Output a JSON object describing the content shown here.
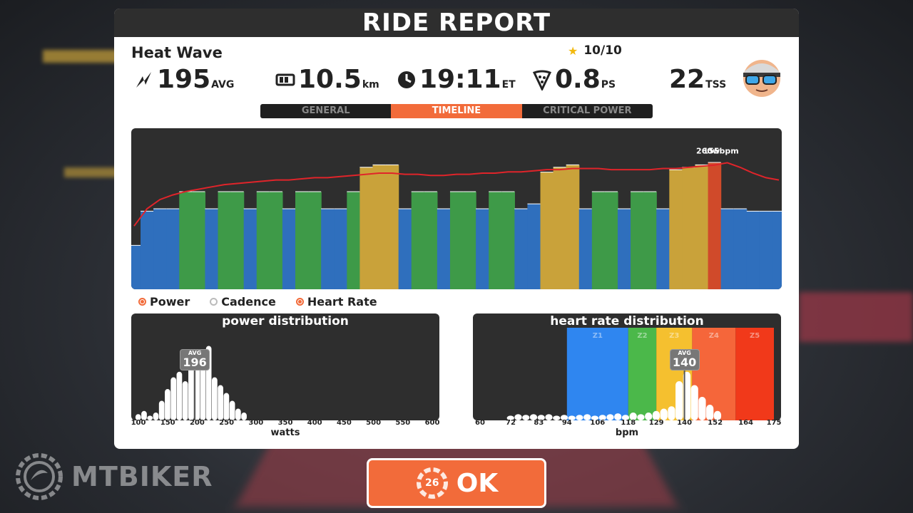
{
  "watermark": {
    "text": "MTBIKER"
  },
  "report": {
    "title": "RIDE REPORT",
    "ride_name": "Heat Wave",
    "rating": "10/10",
    "stats": {
      "power": {
        "value": "195",
        "unit": "AVG",
        "icon": "power-bolt-icon"
      },
      "distance": {
        "value": "10.5",
        "unit": "km",
        "icon": "odometer-icon"
      },
      "time": {
        "value": "19:11",
        "unit": "ET",
        "icon": "clock-icon"
      },
      "pizza": {
        "value": "0.8",
        "unit": "PS",
        "icon": "pizza-icon"
      },
      "tss": {
        "value": "22",
        "unit": "TSS"
      }
    },
    "tabs": [
      {
        "label": "GENERAL",
        "active": false
      },
      {
        "label": "TIMELINE",
        "active": true
      },
      {
        "label": "CRITICAL POWER",
        "active": false
      }
    ],
    "legend": [
      {
        "label": "Power",
        "checked": true
      },
      {
        "label": "Cadence",
        "checked": false
      },
      {
        "label": "Heart Rate",
        "checked": true
      }
    ]
  },
  "chart_data": [
    {
      "type": "area",
      "title": "",
      "annotations": [
        {
          "text": "155bpm",
          "series": "Heart Rate",
          "x": 0.91
        },
        {
          "text": "260w",
          "series": "Power",
          "x": 0.89
        }
      ],
      "x": [
        0.0,
        0.02,
        0.04,
        0.06,
        0.08,
        0.1,
        0.12,
        0.14,
        0.16,
        0.18,
        0.2,
        0.22,
        0.24,
        0.26,
        0.28,
        0.3,
        0.32,
        0.34,
        0.36,
        0.38,
        0.4,
        0.42,
        0.44,
        0.46,
        0.48,
        0.5,
        0.52,
        0.54,
        0.56,
        0.58,
        0.6,
        0.62,
        0.64,
        0.66,
        0.68,
        0.7,
        0.72,
        0.74,
        0.76,
        0.78,
        0.8,
        0.82,
        0.84,
        0.86,
        0.88,
        0.9,
        0.92,
        0.94,
        0.96,
        0.98,
        1.0
      ],
      "series": [
        {
          "name": "Heart Rate",
          "color": "#e0242a",
          "values": [
            95,
            110,
            118,
            122,
            125,
            127,
            129,
            131,
            132,
            133,
            134,
            135,
            135,
            136,
            137,
            137,
            138,
            139,
            140,
            141,
            141,
            140,
            140,
            139,
            139,
            140,
            140,
            141,
            141,
            142,
            142,
            143,
            144,
            144,
            145,
            145,
            145,
            144,
            144,
            144,
            144,
            145,
            145,
            146,
            147,
            148,
            150,
            146,
            141,
            137,
            135
          ]
        },
        {
          "name": "Power",
          "color": "#2f6fbd",
          "values": [
            90,
            160,
            165,
            165,
            200,
            200,
            165,
            200,
            200,
            165,
            200,
            200,
            165,
            200,
            200,
            165,
            165,
            200,
            250,
            255,
            255,
            165,
            200,
            200,
            165,
            200,
            200,
            165,
            200,
            200,
            165,
            175,
            240,
            250,
            255,
            165,
            200,
            200,
            165,
            200,
            200,
            165,
            245,
            250,
            255,
            260,
            165,
            165,
            160,
            160,
            160
          ],
          "zone_colors": [
            "#2f6fbd",
            "#2f6fbd",
            "#2f6fbd",
            "#2f6fbd",
            "#3e9a48",
            "#3e9a48",
            "#2f6fbd",
            "#3e9a48",
            "#3e9a48",
            "#2f6fbd",
            "#3e9a48",
            "#3e9a48",
            "#2f6fbd",
            "#3e9a48",
            "#3e9a48",
            "#2f6fbd",
            "#2f6fbd",
            "#3e9a48",
            "#c9a23a",
            "#c9a23a",
            "#c9a23a",
            "#2f6fbd",
            "#3e9a48",
            "#3e9a48",
            "#2f6fbd",
            "#3e9a48",
            "#3e9a48",
            "#2f6fbd",
            "#3e9a48",
            "#3e9a48",
            "#2f6fbd",
            "#2f6fbd",
            "#c9a23a",
            "#c9a23a",
            "#c9a23a",
            "#2f6fbd",
            "#3e9a48",
            "#3e9a48",
            "#2f6fbd",
            "#3e9a48",
            "#3e9a48",
            "#2f6fbd",
            "#c9a23a",
            "#c9a23a",
            "#c9a23a",
            "#d04a2a",
            "#2f6fbd",
            "#2f6fbd",
            "#2f6fbd",
            "#2f6fbd",
            "#2f6fbd"
          ]
        }
      ]
    },
    {
      "type": "bar",
      "title": "power distribution",
      "xlabel": "watts",
      "ticks": [
        "100",
        "150",
        "200",
        "250",
        "300",
        "350",
        "400",
        "450",
        "500",
        "550",
        "600"
      ],
      "xlim": [
        100,
        600
      ],
      "avg": {
        "label": "AVG",
        "value": 196
      },
      "bins_x": [
        100,
        110,
        120,
        130,
        140,
        150,
        160,
        170,
        180,
        190,
        200,
        210,
        220,
        230,
        240,
        250,
        260,
        270,
        280
      ],
      "values": [
        0.08,
        0.12,
        0.06,
        0.1,
        0.25,
        0.4,
        0.55,
        0.62,
        0.5,
        0.8,
        0.72,
        0.9,
        0.95,
        0.55,
        0.45,
        0.35,
        0.25,
        0.15,
        0.1
      ]
    },
    {
      "type": "bar",
      "title": "heart rate distribution",
      "xlabel": "bpm",
      "ticks": [
        "60",
        "72",
        "83",
        "94",
        "106",
        "118",
        "129",
        "140",
        "152",
        "164",
        "175"
      ],
      "xlim": [
        60,
        175
      ],
      "zones": [
        {
          "label": "Z1",
          "from": 94,
          "to": 118,
          "color": "#2f86f0"
        },
        {
          "label": "Z2",
          "from": 118,
          "to": 129,
          "color": "#4bb84a"
        },
        {
          "label": "Z3",
          "from": 129,
          "to": 143,
          "color": "#f5c02f"
        },
        {
          "label": "Z4",
          "from": 143,
          "to": 160,
          "color": "#f5663a"
        },
        {
          "label": "Z5",
          "from": 160,
          "to": 175,
          "color": "#f1391a"
        }
      ],
      "avg": {
        "label": "AVG",
        "value": 140
      },
      "bins_x": [
        72,
        75,
        78,
        81,
        84,
        87,
        90,
        93,
        96,
        99,
        102,
        105,
        108,
        111,
        114,
        117,
        120,
        123,
        126,
        129,
        132,
        135,
        138,
        141,
        144,
        147,
        150,
        153
      ],
      "values": [
        0.06,
        0.08,
        0.07,
        0.08,
        0.07,
        0.08,
        0.06,
        0.07,
        0.06,
        0.07,
        0.08,
        0.06,
        0.07,
        0.08,
        0.09,
        0.07,
        0.1,
        0.08,
        0.1,
        0.12,
        0.15,
        0.18,
        0.5,
        0.62,
        0.45,
        0.3,
        0.2,
        0.12
      ]
    }
  ],
  "ok_button": {
    "label": "OK",
    "countdown": "26"
  }
}
